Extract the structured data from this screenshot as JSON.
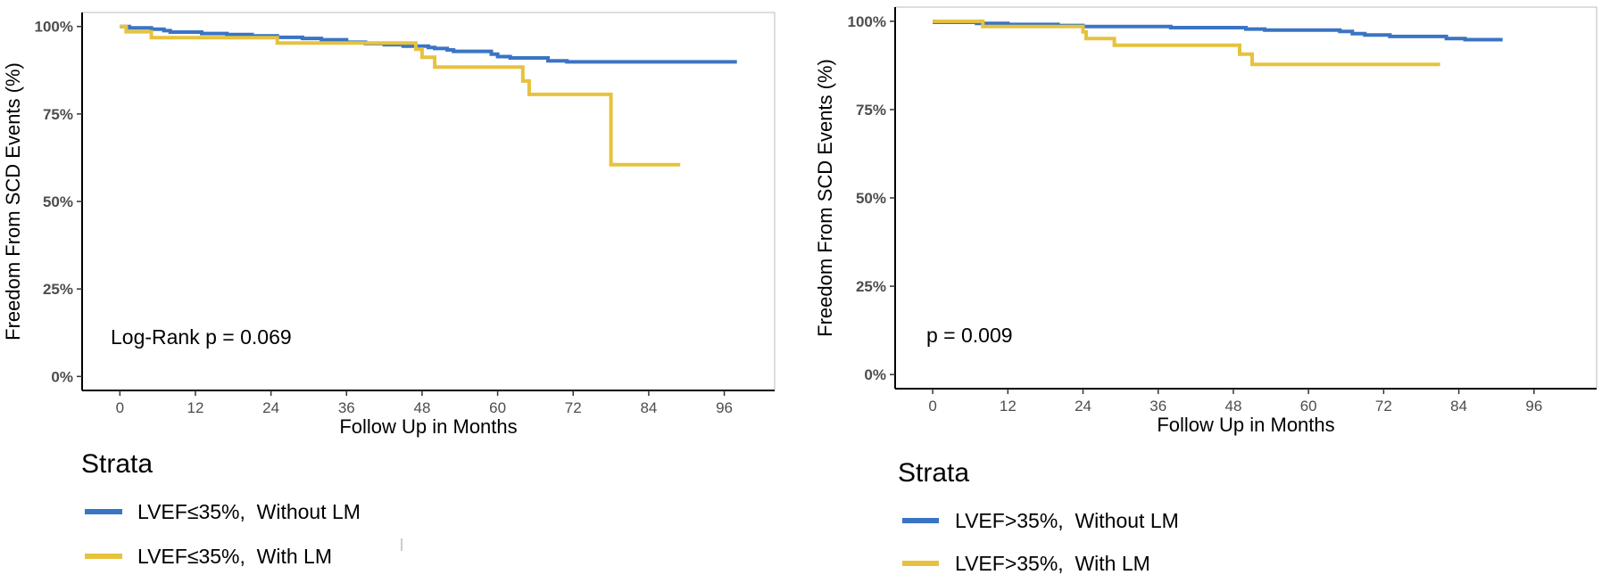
{
  "colors": {
    "without_lm": "#3a74c4",
    "with_lm": "#e6c23e",
    "frame": "#bdbdbd",
    "axis": "#000000"
  },
  "chart_data": [
    {
      "type": "line",
      "subtype": "kaplan-meier step",
      "title": "",
      "xlabel": "Follow Up in Months",
      "ylabel": "Freedom From SCD Events (%)",
      "xlim": [
        -6,
        104
      ],
      "ylim": [
        -4,
        104
      ],
      "x_ticks": [
        0,
        12,
        24,
        36,
        48,
        60,
        72,
        84,
        96
      ],
      "x_tick_labels": [
        "0",
        "12",
        "24",
        "36",
        "48",
        "60",
        "72",
        "84",
        "96"
      ],
      "y_ticks": [
        0,
        25,
        50,
        75,
        100
      ],
      "y_tick_labels": [
        "0%",
        "25%",
        "50%",
        "75%",
        "100%"
      ],
      "annotation": "Log-Rank p = 0.069",
      "legend_title": "Strata",
      "series": [
        {
          "name": "LVEF≤35%,  Without LM",
          "color_key": "without_lm",
          "points": [
            [
              0,
              100
            ],
            [
              1.5,
              99.6
            ],
            [
              5,
              99.2
            ],
            [
              7,
              98.8
            ],
            [
              8,
              98.4
            ],
            [
              13,
              98
            ],
            [
              17,
              97.7
            ],
            [
              21,
              97.3
            ],
            [
              25,
              96.9
            ],
            [
              29,
              96.6
            ],
            [
              32,
              96.2
            ],
            [
              36,
              95.5
            ],
            [
              39,
              95.1
            ],
            [
              42,
              94.8
            ],
            [
              45,
              94.4
            ],
            [
              49,
              94
            ],
            [
              50,
              93.7
            ],
            [
              52,
              93.3
            ],
            [
              53,
              92.9
            ],
            [
              59,
              92.1
            ],
            [
              60,
              91.4
            ],
            [
              62,
              91.0
            ],
            [
              68,
              90.2
            ],
            [
              71,
              89.9
            ],
            [
              98,
              89.9
            ]
          ]
        },
        {
          "name": "LVEF≤35%,  With LM",
          "color_key": "with_lm",
          "points": [
            [
              0,
              100
            ],
            [
              1,
              98.5
            ],
            [
              5,
              96.8
            ],
            [
              25,
              95.3
            ],
            [
              47,
              93.5
            ],
            [
              48,
              91.2
            ],
            [
              50,
              88.4
            ],
            [
              64,
              84.4
            ],
            [
              65,
              80.6
            ],
            [
              78,
              60.5
            ],
            [
              89,
              60.5
            ]
          ]
        }
      ]
    },
    {
      "type": "line",
      "subtype": "kaplan-meier step",
      "title": "",
      "xlabel": "Follow Up in Months",
      "ylabel": "Freedom From SCD Events (%)",
      "xlim": [
        -6,
        106
      ],
      "ylim": [
        -4,
        104
      ],
      "x_ticks": [
        0,
        12,
        24,
        36,
        48,
        60,
        72,
        84,
        96
      ],
      "x_tick_labels": [
        "0",
        "12",
        "24",
        "36",
        "48",
        "60",
        "72",
        "84",
        "96"
      ],
      "y_ticks": [
        0,
        25,
        50,
        75,
        100
      ],
      "y_tick_labels": [
        "0%",
        "25%",
        "50%",
        "75%",
        "100%"
      ],
      "annotation": "p = 0.009",
      "legend_title": "Strata",
      "series": [
        {
          "name": "LVEF>35%,  Without LM",
          "color_key": "without_lm",
          "points": [
            [
              0,
              99.7
            ],
            [
              7,
              99.4
            ],
            [
              12,
              99.1
            ],
            [
              20,
              98.8
            ],
            [
              24,
              98.5
            ],
            [
              38,
              98.2
            ],
            [
              50,
              97.8
            ],
            [
              53,
              97.5
            ],
            [
              65,
              97.1
            ],
            [
              67,
              96.5
            ],
            [
              69,
              96.1
            ],
            [
              73,
              95.7
            ],
            [
              82,
              95.1
            ],
            [
              85,
              94.8
            ],
            [
              91,
              94.8
            ]
          ]
        },
        {
          "name": "LVEF>35%,  With LM",
          "color_key": "with_lm",
          "points": [
            [
              0,
              100
            ],
            [
              8,
              98.5
            ],
            [
              24,
              97
            ],
            [
              24.5,
              95.1
            ],
            [
              29,
              93.2
            ],
            [
              49,
              90.7
            ],
            [
              51,
              87.8
            ],
            [
              81,
              87.8
            ]
          ]
        }
      ]
    }
  ]
}
